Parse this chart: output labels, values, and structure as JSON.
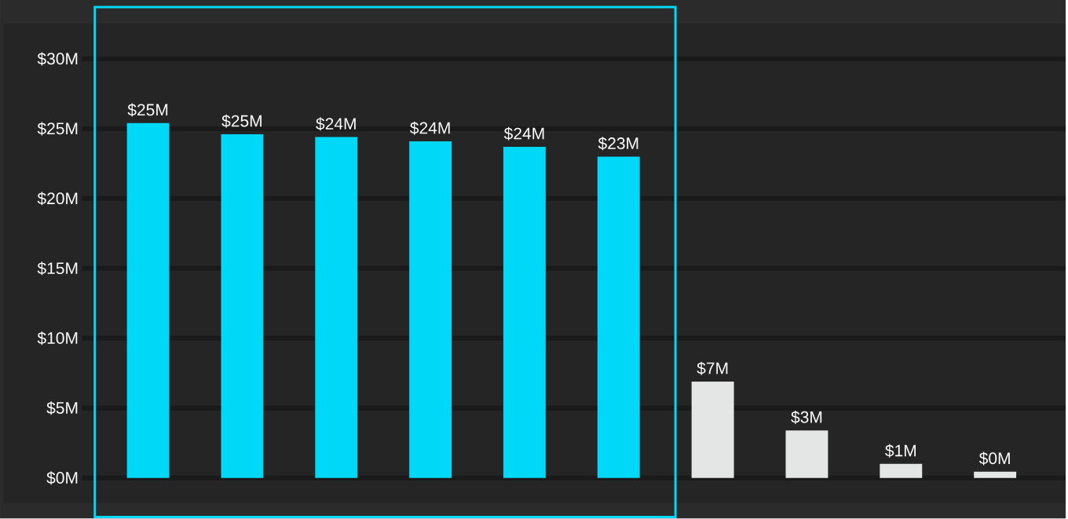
{
  "chart_data": {
    "type": "bar",
    "categories": [
      null,
      null,
      null,
      null,
      null,
      null,
      null,
      null,
      null,
      null
    ],
    "values": [
      25.4,
      24.6,
      24.4,
      24.1,
      23.7,
      23.0,
      6.9,
      3.4,
      1.0,
      0.45
    ],
    "colors": [
      "#00d8f8",
      "#00d8f8",
      "#00d8f8",
      "#00d8f8",
      "#00d8f8",
      "#00d8f8",
      "#e4e6e5",
      "#e4e6e5",
      "#e4e6e5",
      "#e4e6e5"
    ],
    "value_labels": [
      "$25M",
      "$25M",
      "$24M",
      "$24M",
      "$24M",
      "$23M",
      "$7M",
      "$3M",
      "$1M",
      "$0M"
    ],
    "ylim": [
      0,
      30
    ],
    "yticks": [
      {
        "value": 0,
        "label": "$0M"
      },
      {
        "value": 5,
        "label": "$5M"
      },
      {
        "value": 10,
        "label": "$10M"
      },
      {
        "value": 15,
        "label": "$15M"
      },
      {
        "value": 20,
        "label": "$20M"
      },
      {
        "value": 25,
        "label": "$25M"
      },
      {
        "value": 30,
        "label": "$30M"
      }
    ],
    "grid": "y"
  }
}
